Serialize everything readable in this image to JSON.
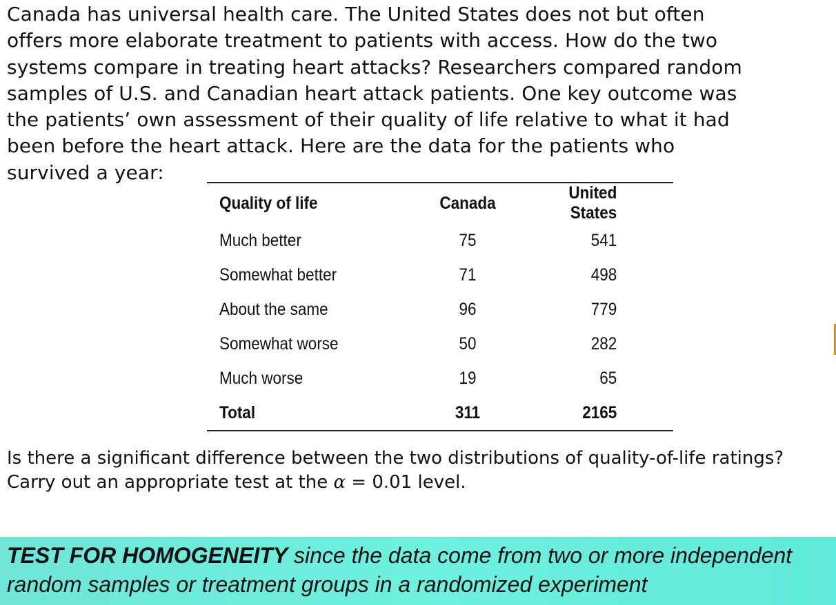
{
  "intro": "Canada has universal health care. The United States does not but often\noffers more elaborate treatment to patients with access. How do the two\nsystems compare in treating heart attacks? Researchers compared random\nsamples of U.S. and Canadian heart attack patients. One key outcome was\nthe patients’ own assessment of their quality of life relative to what it had\nbeen before the heart attack. Here are the data for the patients who\nsurvived a year:",
  "table": {
    "headers": [
      "Quality of life",
      "Canada",
      "United States"
    ],
    "rows": [
      [
        "Much better",
        "75",
        "541"
      ],
      [
        "Somewhat better",
        "71",
        "498"
      ],
      [
        "About the same",
        "96",
        "779"
      ],
      [
        "Somewhat worse",
        "50",
        "282"
      ],
      [
        "Much worse",
        "19",
        "65"
      ]
    ],
    "total": [
      "Total",
      "311",
      "2165"
    ]
  },
  "question": {
    "before_alpha": "Is there a significant difference between the two distributions of quality-of-life ratings? Carry out an appropriate test at the ",
    "alpha_symbol": "α",
    "after_alpha": " = 0.01 level."
  },
  "callout": {
    "bold": "TEST FOR HOMOGENEITY",
    "rest": " since the data come from two or more independent random samples or treatment groups in a randomized experiment"
  }
}
